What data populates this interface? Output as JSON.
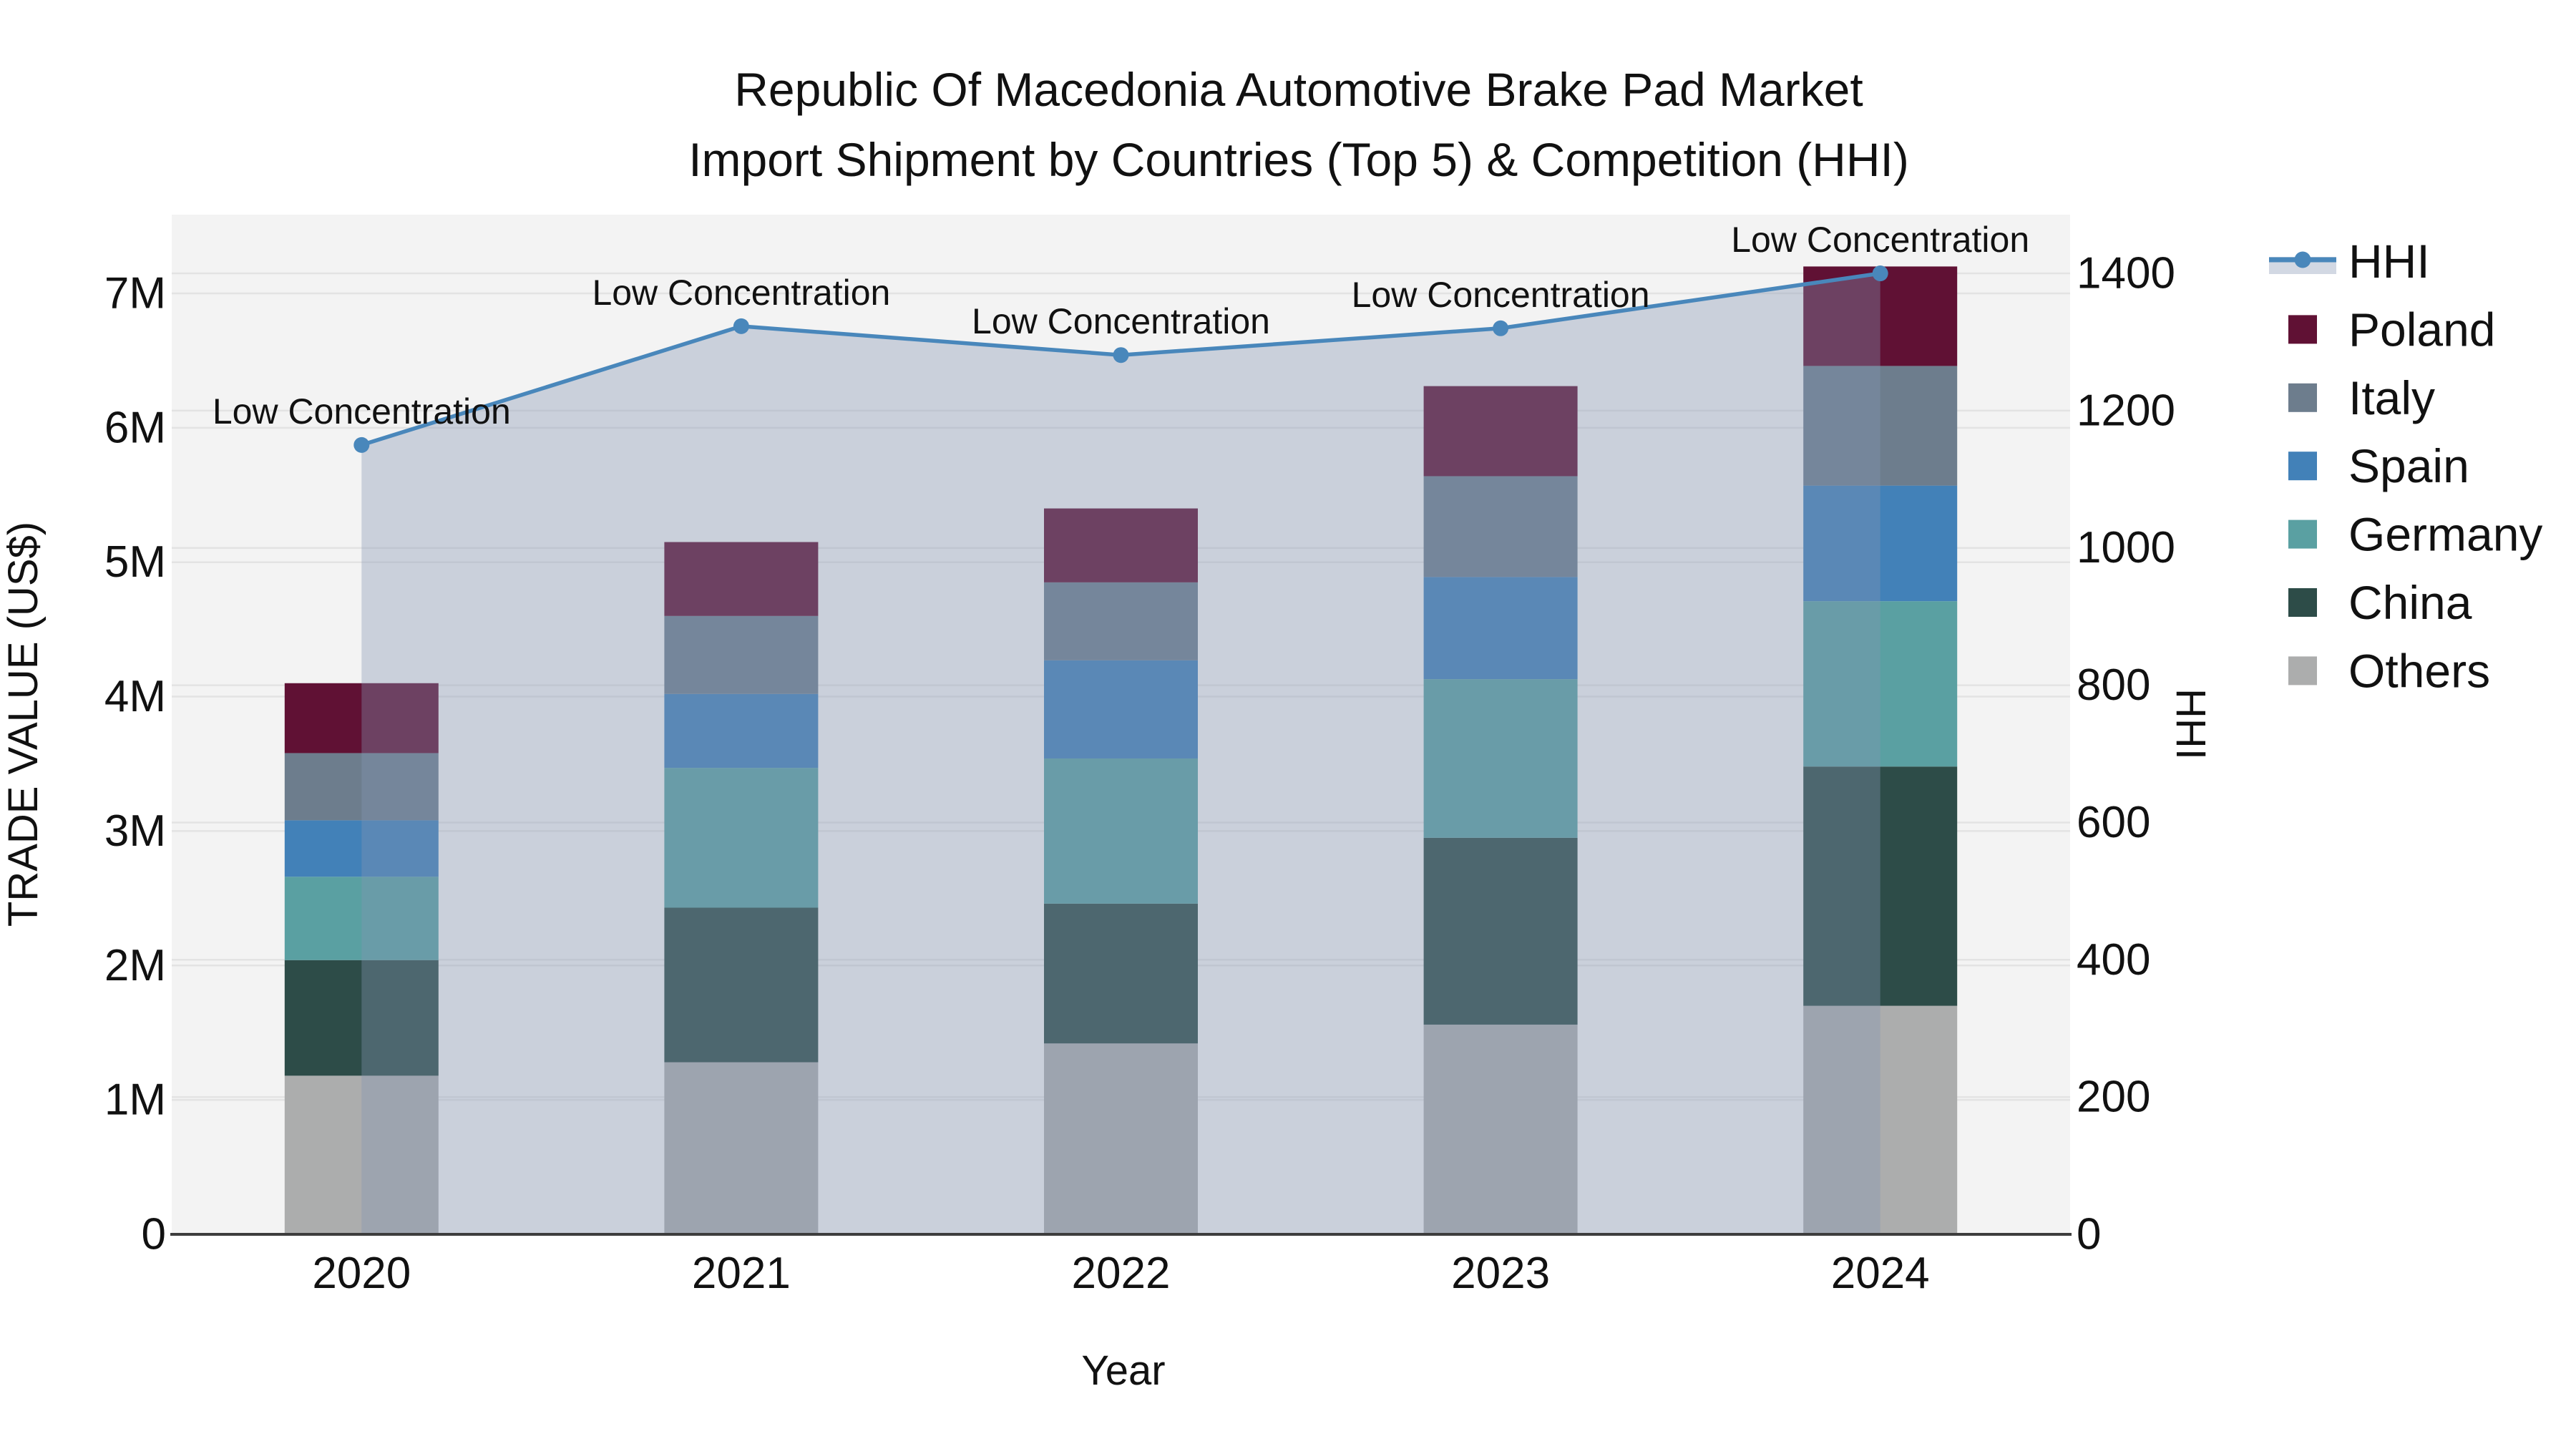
{
  "chart_data": {
    "type": "combo_stacked_bar_line",
    "title_lines": [
      "Republic Of Macedonia Automotive Brake Pad Market",
      "Import Shipment by Countries (Top 5) & Competition (HHI)"
    ],
    "xlabel": "Year",
    "ylabel_left": "TRADE VALUE (US$)",
    "ylabel_right": "HHI",
    "categories": [
      "2020",
      "2021",
      "2022",
      "2023",
      "2024"
    ],
    "value_unit": "million US$",
    "series": [
      {
        "name": "Others",
        "color": "#acadad",
        "values": [
          1.18,
          1.28,
          1.42,
          1.56,
          1.7
        ]
      },
      {
        "name": "China",
        "color": "#2d4c48",
        "values": [
          0.86,
          1.15,
          1.04,
          1.39,
          1.78
        ]
      },
      {
        "name": "Germany",
        "color": "#5aa0a2",
        "values": [
          0.62,
          1.04,
          1.08,
          1.18,
          1.23
        ]
      },
      {
        "name": "Spain",
        "color": "#4281b8",
        "values": [
          0.42,
          0.55,
          0.73,
          0.76,
          0.86
        ]
      },
      {
        "name": "Italy",
        "color": "#6d7d8d",
        "values": [
          0.5,
          0.58,
          0.58,
          0.75,
          0.89
        ]
      },
      {
        "name": "Poland",
        "color": "#601134",
        "values": [
          0.52,
          0.55,
          0.55,
          0.67,
          0.74
        ]
      }
    ],
    "line": {
      "name": "HHI",
      "color": "#4987bb",
      "fill_rgba": "rgba(134,150,180,0.37)",
      "values": [
        1150,
        1323,
        1281,
        1320,
        1400
      ],
      "annotations": [
        "Low Concentration",
        "Low Concentration",
        "Low Concentration",
        "Low Concentration",
        "Low Concentration"
      ]
    },
    "y_left": {
      "ticks": [
        "0",
        "1M",
        "2M",
        "3M",
        "4M",
        "5M",
        "6M",
        "7M"
      ],
      "values": [
        0,
        1,
        2,
        3,
        4,
        5,
        6,
        7
      ],
      "lim": [
        0,
        7.58
      ]
    },
    "y_right": {
      "ticks": [
        "0",
        "200",
        "400",
        "600",
        "800",
        "1000",
        "1200",
        "1400"
      ],
      "values": [
        0,
        200,
        400,
        600,
        800,
        1000,
        1200,
        1400
      ],
      "lim": [
        0,
        1485
      ]
    },
    "legend_order": [
      "HHI",
      "Poland",
      "Italy",
      "Spain",
      "Germany",
      "China",
      "Others"
    ],
    "style": {
      "plot_bg": "#f3f3f3",
      "grid_color": "#e3e3e3",
      "axis_line_color": "#3d3d3d",
      "text_color": "#111111"
    }
  }
}
